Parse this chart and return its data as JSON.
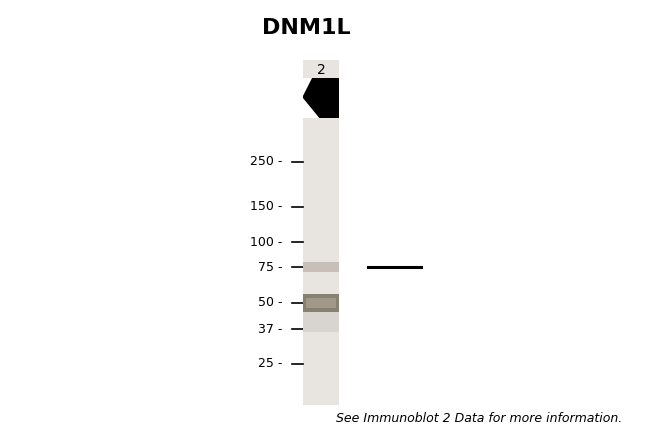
{
  "title": "DNM1L",
  "title_fontsize": 16,
  "title_fontweight": "bold",
  "lane_label": "2",
  "mw_markers": [
    250,
    150,
    100,
    75,
    50,
    37,
    25
  ],
  "bg_color": "#e8e4e0",
  "footer_text": "See Immunoblot 2 Data for more information.",
  "footer_fontsize": 9
}
